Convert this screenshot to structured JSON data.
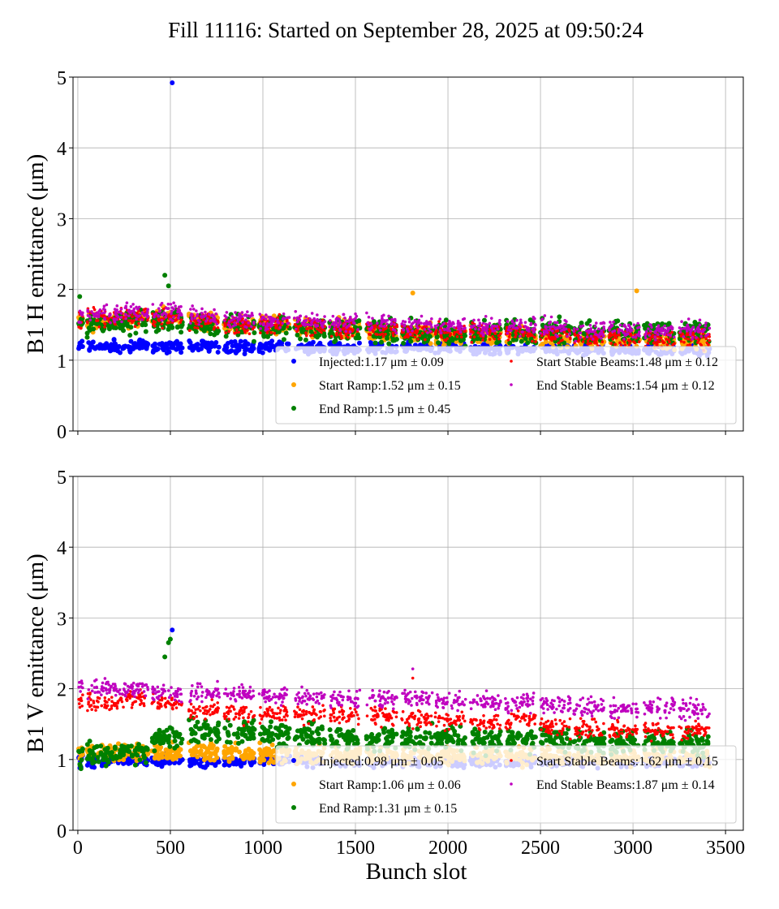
{
  "title": "Fill 11116: Started on September 28, 2025 at 09:50:24",
  "colors": {
    "Injected": "#0000ff",
    "Start Ramp": "#ffa500",
    "End Ramp": "#008000",
    "Start Stable Beams": "#ff0000",
    "End Stable Beams": "#bf00bf"
  },
  "chart_data": [
    {
      "type": "scatter",
      "ylabel": "B1 H emittance (μm)",
      "xlabel": "",
      "xlim": [
        -26,
        3596
      ],
      "ylim": [
        0,
        5
      ],
      "xticks": [
        0,
        500,
        1000,
        1500,
        2000,
        2500,
        3000,
        3500
      ],
      "yticks": [
        0,
        1,
        2,
        3,
        4,
        5
      ],
      "grid": true,
      "legend_position": "lower-right",
      "train_start_slots": [
        50,
        215,
        400,
        600,
        790,
        980,
        1170,
        1360,
        1560,
        1750,
        1930,
        2120,
        2310,
        2500,
        2680,
        2870,
        3060,
        3250
      ],
      "series": [
        {
          "name": "Injected",
          "legend": "Injected:1.17 μm ± 0.09",
          "train_means": [
            1.2,
            1.2,
            1.19,
            1.2,
            1.18,
            1.18,
            1.17,
            1.16,
            1.16,
            1.17,
            1.17,
            1.16,
            1.16,
            1.16,
            1.15,
            1.15,
            1.15,
            1.15
          ],
          "outliers": [
            [
              510,
              4.92
            ]
          ]
        },
        {
          "name": "Start Ramp",
          "legend": "Start Ramp:1.52 μm ± 0.15",
          "train_means": [
            1.55,
            1.6,
            1.6,
            1.55,
            1.5,
            1.5,
            1.45,
            1.45,
            1.4,
            1.4,
            1.35,
            1.35,
            1.35,
            1.3,
            1.3,
            1.3,
            1.28,
            1.28
          ],
          "outliers": [
            [
              3020,
              1.98
            ],
            [
              1810,
              1.95
            ]
          ]
        },
        {
          "name": "End Ramp",
          "legend": "End Ramp:1.5 μm ± 0.45",
          "train_means": [
            1.5,
            1.55,
            1.55,
            1.5,
            1.48,
            1.45,
            1.42,
            1.42,
            1.42,
            1.4,
            1.38,
            1.38,
            1.4,
            1.4,
            1.38,
            1.38,
            1.4,
            1.4
          ],
          "outliers": [
            [
              470,
              2.2
            ],
            [
              490,
              2.05
            ],
            [
              10,
              1.9
            ]
          ]
        },
        {
          "name": "Start Stable Beams",
          "legend": "Start Stable Beams:1.48 μm ± 0.12",
          "train_means": [
            1.6,
            1.62,
            1.6,
            1.55,
            1.5,
            1.5,
            1.48,
            1.45,
            1.45,
            1.42,
            1.4,
            1.38,
            1.38,
            1.35,
            1.32,
            1.32,
            1.3,
            1.3
          ],
          "outliers": []
        },
        {
          "name": "End Stable Beams",
          "legend": "End Stable Beams:1.54 μm ± 0.12",
          "train_means": [
            1.65,
            1.68,
            1.68,
            1.62,
            1.58,
            1.55,
            1.55,
            1.52,
            1.52,
            1.5,
            1.48,
            1.48,
            1.47,
            1.46,
            1.42,
            1.42,
            1.42,
            1.42
          ],
          "outliers": []
        }
      ]
    },
    {
      "type": "scatter",
      "ylabel": "B1 V emittance (μm)",
      "xlabel": "Bunch slot",
      "xlim": [
        -26,
        3596
      ],
      "ylim": [
        0,
        5
      ],
      "xticks": [
        0,
        500,
        1000,
        1500,
        2000,
        2500,
        3000,
        3500
      ],
      "yticks": [
        0,
        1,
        2,
        3,
        4,
        5
      ],
      "grid": true,
      "legend_position": "lower-right",
      "train_start_slots": [
        50,
        215,
        400,
        600,
        790,
        980,
        1170,
        1360,
        1560,
        1750,
        1930,
        2120,
        2310,
        2500,
        2680,
        2870,
        3060,
        3250
      ],
      "series": [
        {
          "name": "Injected",
          "legend": "Injected:0.98 μm ± 0.05",
          "train_means": [
            0.98,
            0.98,
            0.98,
            0.98,
            0.98,
            0.98,
            0.98,
            0.97,
            0.97,
            0.97,
            0.97,
            0.97,
            0.97,
            0.97,
            0.97,
            0.97,
            0.97,
            0.97
          ],
          "outliers": [
            [
              510,
              2.83
            ]
          ]
        },
        {
          "name": "Start Ramp",
          "legend": "Start Ramp:1.06 μm ± 0.06",
          "train_means": [
            1.1,
            1.1,
            1.1,
            1.1,
            1.1,
            1.08,
            1.07,
            1.07,
            1.06,
            1.06,
            1.05,
            1.05,
            1.05,
            1.04,
            1.04,
            1.03,
            1.03,
            1.03
          ],
          "outliers": []
        },
        {
          "name": "End Ramp",
          "legend": "End Ramp:1.31 μm ± 0.15",
          "train_means": [
            1.05,
            1.1,
            1.3,
            1.4,
            1.4,
            1.35,
            1.35,
            1.3,
            1.3,
            1.3,
            1.3,
            1.28,
            1.28,
            1.28,
            1.25,
            1.25,
            1.25,
            1.25
          ],
          "outliers": [
            [
              470,
              2.45
            ],
            [
              490,
              2.65
            ],
            [
              500,
              2.7
            ]
          ]
        },
        {
          "name": "Start Stable Beams",
          "legend": "Start Stable Beams:1.62 μm ± 0.15",
          "train_means": [
            1.8,
            1.85,
            1.8,
            1.7,
            1.65,
            1.65,
            1.65,
            1.62,
            1.6,
            1.58,
            1.55,
            1.52,
            1.55,
            1.45,
            1.42,
            1.42,
            1.4,
            1.4
          ],
          "outliers": [
            [
              1810,
              2.15
            ]
          ]
        },
        {
          "name": "End Stable Beams",
          "legend": "End Stable Beams:1.87 μm ± 0.14",
          "train_means": [
            2.0,
            2.0,
            1.95,
            1.95,
            1.92,
            1.9,
            1.88,
            1.85,
            1.85,
            1.85,
            1.82,
            1.82,
            1.8,
            1.78,
            1.75,
            1.72,
            1.72,
            1.72
          ],
          "outliers": [
            [
              1810,
              2.28
            ]
          ]
        }
      ]
    }
  ]
}
